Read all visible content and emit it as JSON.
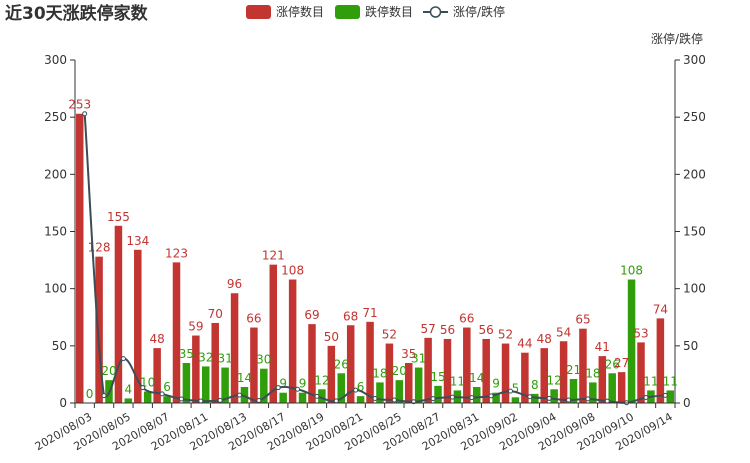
{
  "colors": {
    "up": "#c23531",
    "down": "#2f9e0a",
    "ratio": "#3b4e57"
  },
  "chart_data": {
    "type": "bar",
    "title": "近30天涨跌停家数",
    "legend": [
      "涨停数目",
      "跌停数目",
      "涨停/跌停"
    ],
    "legend_position": "top-center",
    "right_axis_name": "涨停/跌停",
    "ylim": [
      0,
      300
    ],
    "yticks": [
      "0",
      "50",
      "100",
      "150",
      "200",
      "250",
      "300"
    ],
    "categories": [
      "2020/08/03",
      "2020/08/04",
      "2020/08/05",
      "2020/08/06",
      "2020/08/07",
      "2020/08/10",
      "2020/08/11",
      "2020/08/12",
      "2020/08/13",
      "2020/08/14",
      "2020/08/17",
      "2020/08/18",
      "2020/08/19",
      "2020/08/20",
      "2020/08/21",
      "2020/08/24",
      "2020/08/25",
      "2020/08/26",
      "2020/08/27",
      "2020/08/28",
      "2020/08/31",
      "2020/09/01",
      "2020/09/02",
      "2020/09/03",
      "2020/09/04",
      "2020/09/07",
      "2020/09/08",
      "2020/09/09",
      "2020/09/10",
      "2020/09/11",
      "2020/09/14"
    ],
    "x_tick_labels": [
      "2020/08/03",
      "2020/08/05",
      "2020/08/07",
      "2020/08/11",
      "2020/08/13",
      "2020/08/17",
      "2020/08/19",
      "2020/08/21",
      "2020/08/25",
      "2020/08/27",
      "2020/08/31",
      "2020/09/02",
      "2020/09/04",
      "2020/09/08",
      "2020/09/10",
      "2020/09/14"
    ],
    "x_tick_indices": [
      0,
      2,
      4,
      6,
      8,
      10,
      12,
      14,
      16,
      18,
      20,
      22,
      24,
      26,
      28,
      30
    ],
    "series": [
      {
        "name": "涨停数目",
        "values": [
          253,
          128,
          155,
          134,
          48,
          123,
          59,
          70,
          96,
          66,
          121,
          108,
          69,
          50,
          68,
          71,
          52,
          35,
          57,
          56,
          66,
          56,
          52,
          44,
          48,
          54,
          65,
          41,
          27,
          53,
          74
        ]
      },
      {
        "name": "跌停数目",
        "values": [
          0,
          20,
          4,
          10,
          6,
          35,
          32,
          31,
          14,
          30,
          9,
          9,
          12,
          26,
          6,
          18,
          20,
          31,
          15,
          11,
          14,
          9,
          5,
          8,
          12,
          21,
          18,
          26,
          108,
          11,
          11
        ]
      },
      {
        "name": "涨停/跌停",
        "values": [
          253,
          6.4,
          38.8,
          13.4,
          8,
          3.5,
          1.8,
          2.3,
          6.9,
          2.2,
          13.4,
          12,
          5.8,
          1.9,
          11.3,
          3.9,
          2.6,
          1.1,
          3.8,
          5.1,
          4.7,
          6.2,
          10.4,
          5.5,
          4,
          2.6,
          3.6,
          1.6,
          0.25,
          4.8,
          6.7
        ]
      }
    ]
  }
}
